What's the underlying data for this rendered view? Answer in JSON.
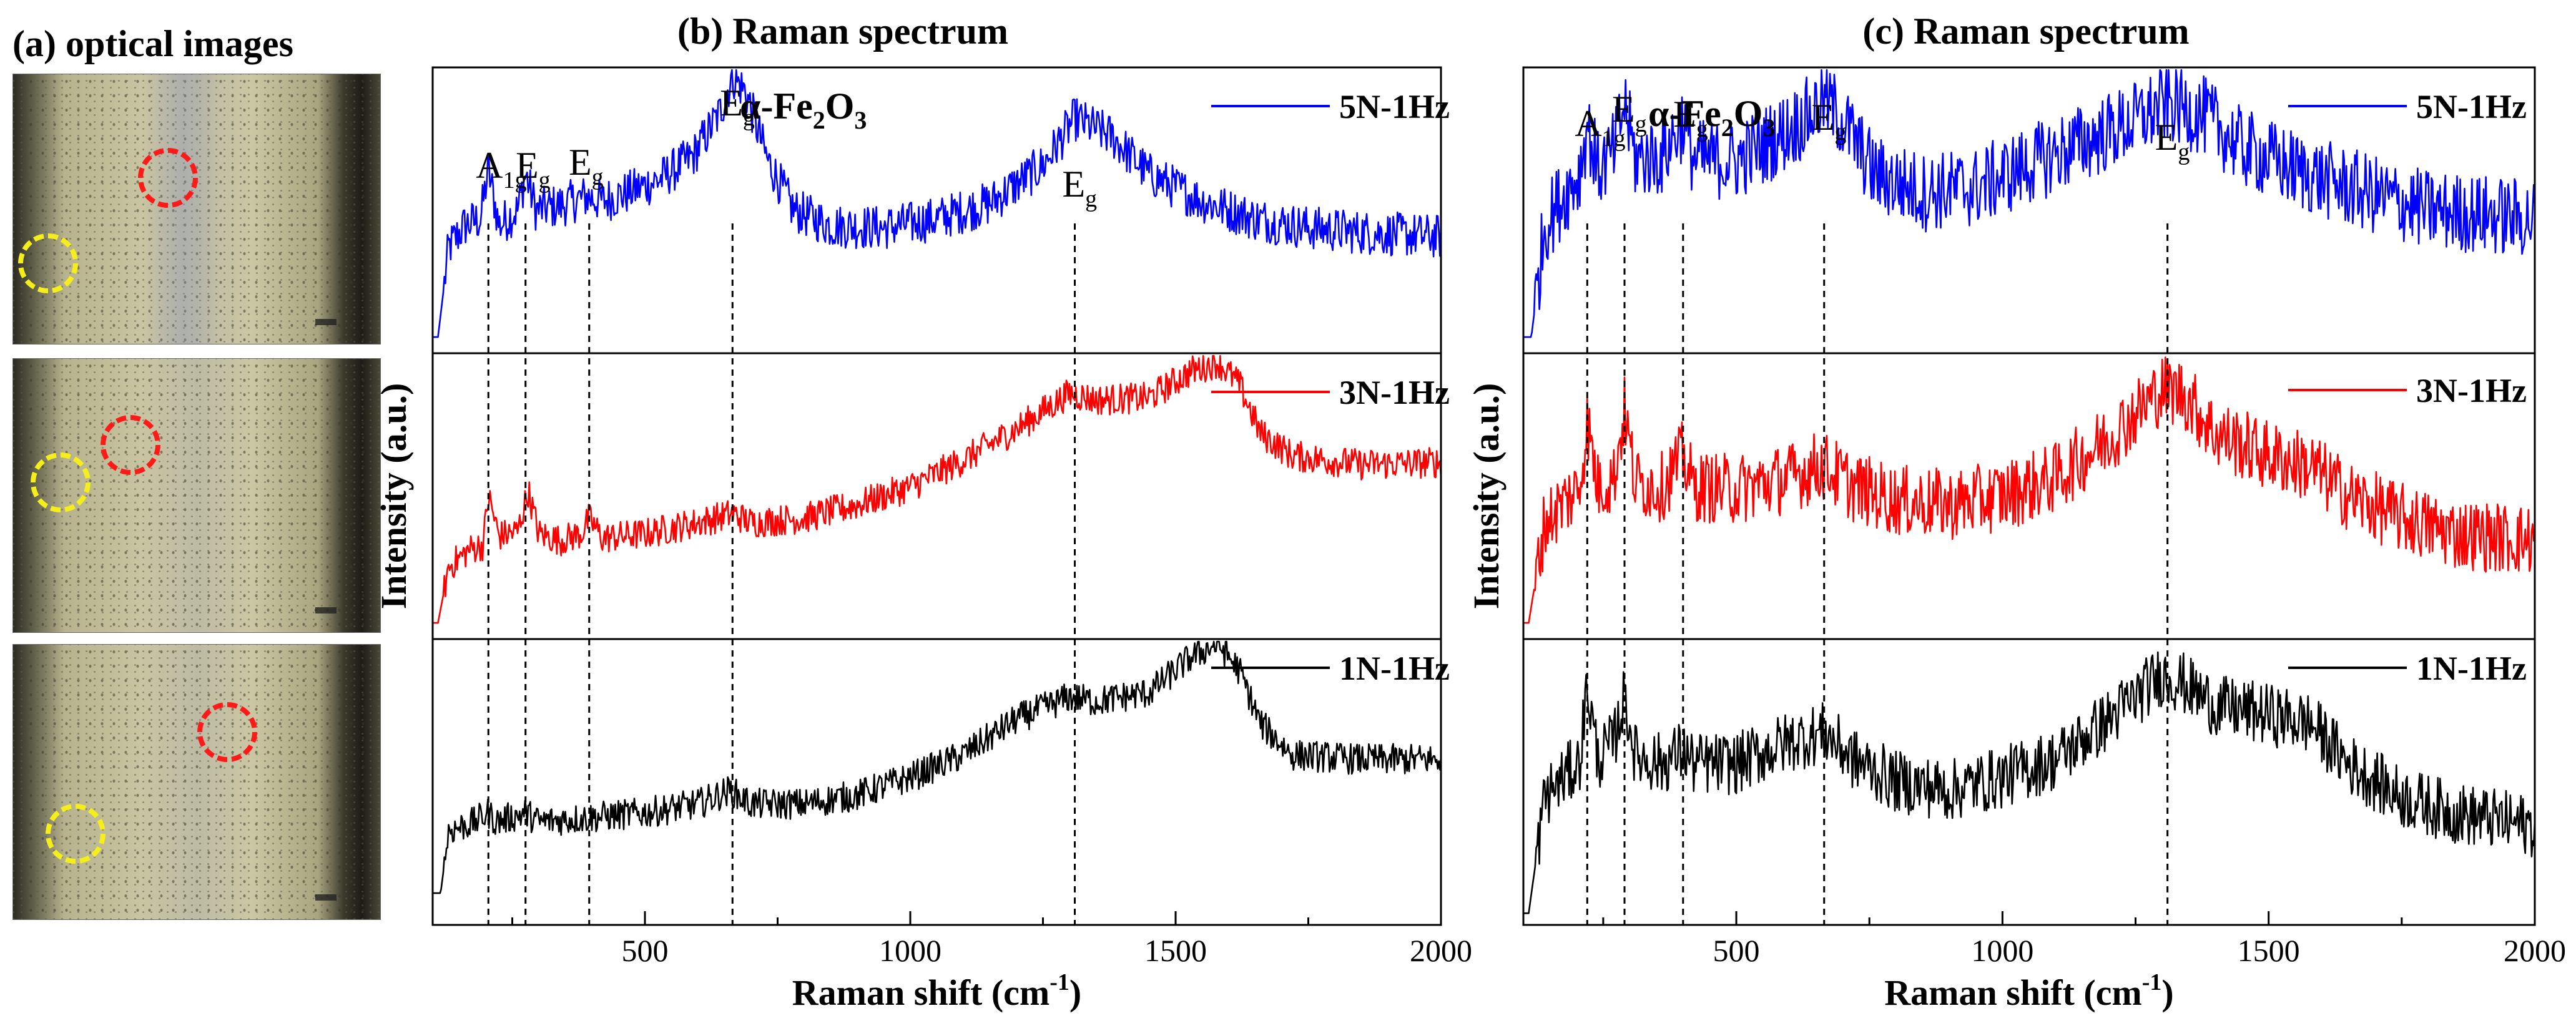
{
  "panel_a": {
    "title": "(a) optical images",
    "images": [
      {
        "name": "optical-image-5N",
        "annotations": [
          "red-circle",
          "yellow-circle"
        ]
      },
      {
        "name": "optical-image-3N",
        "annotations": [
          "red-circle",
          "yellow-circle"
        ]
      },
      {
        "name": "optical-image-1N",
        "annotations": [
          "red-circle",
          "yellow-circle"
        ]
      }
    ],
    "colors": {
      "red_circle": "#ff1a1a",
      "yellow_circle": "#f5ee1a"
    }
  },
  "chart_data": [
    {
      "type": "line",
      "panel": "b",
      "title": "(b) Raman spectrum",
      "xlabel": "Raman shift (cm",
      "xlabel_sup": "-1",
      "xlabel_end": ")",
      "ylabel": "Intensity (a.u.)",
      "xlim": [
        100,
        2000
      ],
      "xticks": [
        500,
        1000,
        1500,
        2000
      ],
      "compound": {
        "pre": "α-Fe",
        "sub1": "2",
        "mid": "O",
        "sub2": "3"
      },
      "peak_lines": [
        205,
        275,
        395,
        665,
        1310
      ],
      "peak_labels": [
        {
          "x": 205,
          "text": "A",
          "sub": "1g"
        },
        {
          "x": 280,
          "text": "E",
          "sub": "g"
        },
        {
          "x": 380,
          "text": "E",
          "sub": "g"
        },
        {
          "x": 665,
          "text": "E",
          "sub": "g"
        },
        {
          "x": 1310,
          "text": "E",
          "sub": "g"
        }
      ],
      "series": [
        {
          "name": "5N-1Hz",
          "color": "#0000ff",
          "noise": 0.1,
          "points": [
            [
              100,
              0.05
            ],
            [
              110,
              0.05
            ],
            [
              130,
              0.45
            ],
            [
              160,
              0.55
            ],
            [
              190,
              0.58
            ],
            [
              205,
              0.8
            ],
            [
              225,
              0.55
            ],
            [
              260,
              0.62
            ],
            [
              275,
              0.78
            ],
            [
              295,
              0.62
            ],
            [
              340,
              0.64
            ],
            [
              390,
              0.68
            ],
            [
              420,
              0.66
            ],
            [
              470,
              0.7
            ],
            [
              530,
              0.76
            ],
            [
              590,
              0.86
            ],
            [
              640,
              1.05
            ],
            [
              665,
              1.22
            ],
            [
              690,
              1.15
            ],
            [
              730,
              0.85
            ],
            [
              780,
              0.62
            ],
            [
              850,
              0.55
            ],
            [
              950,
              0.54
            ],
            [
              1050,
              0.58
            ],
            [
              1150,
              0.65
            ],
            [
              1250,
              0.82
            ],
            [
              1310,
              1.03
            ],
            [
              1380,
              0.95
            ],
            [
              1450,
              0.78
            ],
            [
              1550,
              0.66
            ],
            [
              1650,
              0.58
            ],
            [
              1750,
              0.54
            ],
            [
              1850,
              0.52
            ],
            [
              2000,
              0.5
            ]
          ]
        },
        {
          "name": "3N-1Hz",
          "color": "#ff0000",
          "noise": 0.07,
          "points": [
            [
              100,
              0.05
            ],
            [
              110,
              0.05
            ],
            [
              130,
              0.3
            ],
            [
              170,
              0.38
            ],
            [
              195,
              0.4
            ],
            [
              205,
              0.62
            ],
            [
              225,
              0.44
            ],
            [
              260,
              0.46
            ],
            [
              280,
              0.64
            ],
            [
              300,
              0.45
            ],
            [
              340,
              0.42
            ],
            [
              380,
              0.45
            ],
            [
              395,
              0.52
            ],
            [
              420,
              0.43
            ],
            [
              500,
              0.45
            ],
            [
              600,
              0.5
            ],
            [
              665,
              0.54
            ],
            [
              700,
              0.5
            ],
            [
              800,
              0.52
            ],
            [
              900,
              0.58
            ],
            [
              1000,
              0.66
            ],
            [
              1100,
              0.78
            ],
            [
              1200,
              0.92
            ],
            [
              1300,
              1.08
            ],
            [
              1350,
              1.05
            ],
            [
              1450,
              1.06
            ],
            [
              1530,
              1.18
            ],
            [
              1580,
              1.22
            ],
            [
              1620,
              1.12
            ],
            [
              1660,
              0.9
            ],
            [
              1720,
              0.8
            ],
            [
              1850,
              0.76
            ],
            [
              2000,
              0.77
            ]
          ]
        },
        {
          "name": "1N-1Hz",
          "color": "#000000",
          "noise": 0.07,
          "points": [
            [
              100,
              0.12
            ],
            [
              115,
              0.12
            ],
            [
              130,
              0.4
            ],
            [
              180,
              0.44
            ],
            [
              205,
              0.48
            ],
            [
              220,
              0.44
            ],
            [
              275,
              0.48
            ],
            [
              300,
              0.44
            ],
            [
              400,
              0.46
            ],
            [
              500,
              0.48
            ],
            [
              600,
              0.52
            ],
            [
              660,
              0.58
            ],
            [
              700,
              0.52
            ],
            [
              800,
              0.52
            ],
            [
              900,
              0.56
            ],
            [
              1000,
              0.64
            ],
            [
              1100,
              0.74
            ],
            [
              1200,
              0.9
            ],
            [
              1300,
              1.0
            ],
            [
              1350,
              0.98
            ],
            [
              1450,
              1.02
            ],
            [
              1530,
              1.18
            ],
            [
              1580,
              1.24
            ],
            [
              1620,
              1.12
            ],
            [
              1660,
              0.88
            ],
            [
              1720,
              0.74
            ],
            [
              1850,
              0.72
            ],
            [
              2000,
              0.72
            ]
          ]
        }
      ]
    },
    {
      "type": "line",
      "panel": "c",
      "title": "(c) Raman spectrum",
      "xlabel": "Raman shift (cm",
      "xlabel_sup": "-1",
      "xlabel_end": ")",
      "ylabel": "Intensity (a.u.)",
      "xlim": [
        100,
        2000
      ],
      "xticks": [
        500,
        1000,
        1500,
        2000
      ],
      "compound": {
        "pre": "α-Fe",
        "sub1": "2",
        "mid": "O",
        "sub2": "3"
      },
      "peak_lines": [
        220,
        290,
        400,
        665,
        1310
      ],
      "peak_labels": [
        {
          "x": 220,
          "text": "A",
          "sub": "1g"
        },
        {
          "x": 290,
          "text": "E",
          "sub": "g"
        },
        {
          "x": 405,
          "text": "E",
          "sub": "g"
        },
        {
          "x": 665,
          "text": "E",
          "sub": "g"
        },
        {
          "x": 1310,
          "text": "E",
          "sub": "g"
        }
      ],
      "series": [
        {
          "name": "5N-1Hz",
          "color": "#0000ff",
          "noise": 0.18,
          "points": [
            [
              100,
              0.05
            ],
            [
              115,
              0.05
            ],
            [
              140,
              0.55
            ],
            [
              180,
              0.7
            ],
            [
              205,
              0.78
            ],
            [
              220,
              1.0
            ],
            [
              240,
              0.8
            ],
            [
              270,
              0.88
            ],
            [
              290,
              1.1
            ],
            [
              310,
              0.85
            ],
            [
              360,
              0.86
            ],
            [
              400,
              1.02
            ],
            [
              420,
              0.85
            ],
            [
              500,
              0.84
            ],
            [
              580,
              0.95
            ],
            [
              640,
              1.05
            ],
            [
              665,
              1.12
            ],
            [
              700,
              1.02
            ],
            [
              760,
              0.78
            ],
            [
              850,
              0.7
            ],
            [
              950,
              0.72
            ],
            [
              1050,
              0.82
            ],
            [
              1150,
              0.92
            ],
            [
              1250,
              1.02
            ],
            [
              1310,
              1.1
            ],
            [
              1380,
              1.04
            ],
            [
              1450,
              0.9
            ],
            [
              1550,
              0.8
            ],
            [
              1650,
              0.72
            ],
            [
              1800,
              0.62
            ],
            [
              2000,
              0.58
            ]
          ]
        },
        {
          "name": "3N-1Hz",
          "color": "#ff0000",
          "noise": 0.16,
          "points": [
            [
              100,
              0.05
            ],
            [
              110,
              0.05
            ],
            [
              140,
              0.5
            ],
            [
              180,
              0.6
            ],
            [
              205,
              0.65
            ],
            [
              220,
              0.95
            ],
            [
              240,
              0.66
            ],
            [
              270,
              0.7
            ],
            [
              290,
              1.0
            ],
            [
              310,
              0.68
            ],
            [
              360,
              0.66
            ],
            [
              400,
              0.8
            ],
            [
              420,
              0.66
            ],
            [
              500,
              0.65
            ],
            [
              600,
              0.7
            ],
            [
              660,
              0.76
            ],
            [
              720,
              0.66
            ],
            [
              800,
              0.6
            ],
            [
              900,
              0.58
            ],
            [
              1000,
              0.62
            ],
            [
              1100,
              0.7
            ],
            [
              1200,
              0.88
            ],
            [
              1300,
              1.1
            ],
            [
              1340,
              1.08
            ],
            [
              1400,
              0.9
            ],
            [
              1500,
              0.8
            ],
            [
              1580,
              0.75
            ],
            [
              1650,
              0.62
            ],
            [
              1750,
              0.52
            ],
            [
              1850,
              0.45
            ],
            [
              2000,
              0.42
            ]
          ]
        },
        {
          "name": "1N-1Hz",
          "color": "#000000",
          "noise": 0.14,
          "points": [
            [
              100,
              0.03
            ],
            [
              110,
              0.03
            ],
            [
              140,
              0.55
            ],
            [
              180,
              0.65
            ],
            [
              205,
              0.7
            ],
            [
              220,
              1.05
            ],
            [
              240,
              0.72
            ],
            [
              270,
              0.8
            ],
            [
              290,
              1.0
            ],
            [
              310,
              0.74
            ],
            [
              360,
              0.7
            ],
            [
              400,
              0.76
            ],
            [
              420,
              0.7
            ],
            [
              500,
              0.7
            ],
            [
              600,
              0.8
            ],
            [
              665,
              0.84
            ],
            [
              720,
              0.72
            ],
            [
              800,
              0.62
            ],
            [
              900,
              0.58
            ],
            [
              1000,
              0.64
            ],
            [
              1100,
              0.72
            ],
            [
              1200,
              0.9
            ],
            [
              1300,
              1.1
            ],
            [
              1340,
              1.06
            ],
            [
              1400,
              0.96
            ],
            [
              1500,
              0.92
            ],
            [
              1580,
              0.88
            ],
            [
              1650,
              0.7
            ],
            [
              1750,
              0.55
            ],
            [
              1850,
              0.48
            ],
            [
              2000,
              0.42
            ]
          ]
        }
      ]
    }
  ]
}
